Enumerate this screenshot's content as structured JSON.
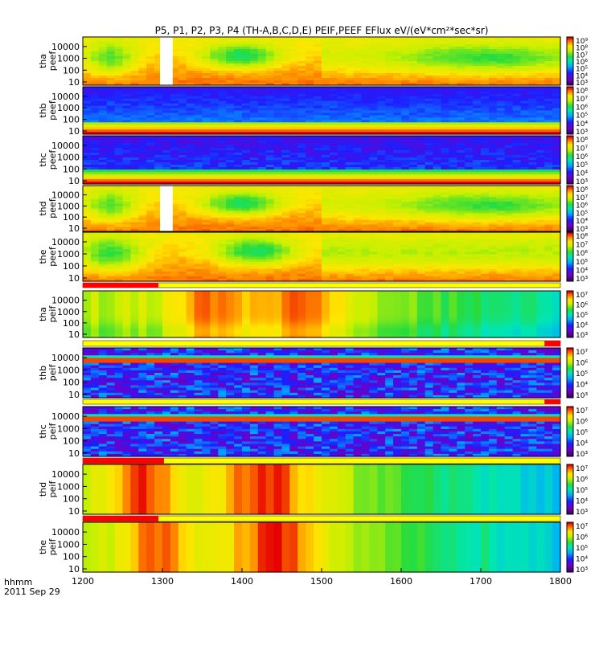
{
  "chart_data": {
    "type": "heatmap",
    "title": "P5, P1, P2, P3, P4 (TH-A,B,C,D,E) PEIF,PEEF EFlux eV/(eV*cm²*sec*sr)",
    "x_ticks": [
      "1200",
      "1300",
      "1400",
      "1500",
      "1600",
      "1700",
      "1800"
    ],
    "xlim": [
      1200,
      1800
    ],
    "x_label_line1": "hhmm",
    "x_label_line2": "2011 Sep 29",
    "y_ticks": [
      "10",
      "100",
      "1000",
      "10000"
    ],
    "y_scale": "log",
    "colorscale": "rainbow (purple-blue-cyan-green-yellow-red)",
    "panels": [
      {
        "label1": "tha",
        "label2": "peef",
        "colorbar_ticks": [
          "10³",
          "10⁴",
          "10⁵",
          "10⁶",
          "10⁷",
          "10⁸",
          "10⁹"
        ],
        "profile": "electron_a",
        "gap": [
          1297,
          1313
        ]
      },
      {
        "label1": "thb",
        "label2": "peef",
        "colorbar_ticks": [
          "10³",
          "10⁴",
          "10⁵",
          "10⁶",
          "10⁷",
          "10⁸"
        ],
        "profile": "electron_b"
      },
      {
        "label1": "thc",
        "label2": "peef",
        "colorbar_ticks": [
          "10³",
          "10⁴",
          "10⁵",
          "10⁶",
          "10⁷",
          "10⁸"
        ],
        "profile": "electron_c"
      },
      {
        "label1": "thd",
        "label2": "peef",
        "colorbar_ticks": [
          "10³",
          "10⁴",
          "10⁵",
          "10⁶",
          "10⁷",
          "10⁸"
        ],
        "profile": "electron_a",
        "gap": [
          1297,
          1313
        ]
      },
      {
        "label1": "the",
        "label2": "peef",
        "colorbar_ticks": [
          "10³",
          "10⁴",
          "10⁵",
          "10⁶",
          "10⁷",
          "10⁸"
        ],
        "profile": "electron_e"
      },
      {
        "label1": "tha",
        "label2": "peif",
        "colorbar_ticks": [
          "10³",
          "10⁴",
          "10⁵",
          "10⁶",
          "10⁷"
        ],
        "profile": "ion_a"
      },
      {
        "label1": "thb",
        "label2": "peif",
        "colorbar_ticks": [
          "10³",
          "10⁴",
          "10⁵",
          "10⁶",
          "10⁷"
        ],
        "profile": "ion_bc"
      },
      {
        "label1": "thc",
        "label2": "peif",
        "colorbar_ticks": [
          "10³",
          "10⁴",
          "10⁵",
          "10⁶",
          "10⁷"
        ],
        "profile": "ion_bc"
      },
      {
        "label1": "thd",
        "label2": "peif",
        "colorbar_ticks": [
          "10³",
          "10⁴",
          "10⁵",
          "10⁶",
          "10⁷"
        ],
        "profile": "ion_d"
      },
      {
        "label1": "the",
        "label2": "peif",
        "colorbar_ticks": [
          "10³",
          "10⁴",
          "10⁵",
          "10⁶",
          "10⁷"
        ],
        "profile": "ion_e"
      }
    ],
    "mode_bars": [
      {
        "after_panel": 4,
        "segments": [
          {
            "from": 1200,
            "to": 1295,
            "color": "#ff0000"
          }
        ]
      },
      {
        "after_panel": 5,
        "segments": [
          {
            "from": 1780,
            "to": 1800,
            "color": "#ff0000"
          }
        ]
      },
      {
        "after_panel": 6,
        "segments": [
          {
            "from": 1780,
            "to": 1800,
            "color": "#ff0000"
          }
        ]
      },
      {
        "after_panel": 7,
        "segments": [
          {
            "from": 1200,
            "to": 1302,
            "color": "#ff0000"
          }
        ]
      },
      {
        "after_panel": 8,
        "segments": [
          {
            "from": 1200,
            "to": 1295,
            "color": "#ff0000"
          }
        ]
      }
    ]
  }
}
